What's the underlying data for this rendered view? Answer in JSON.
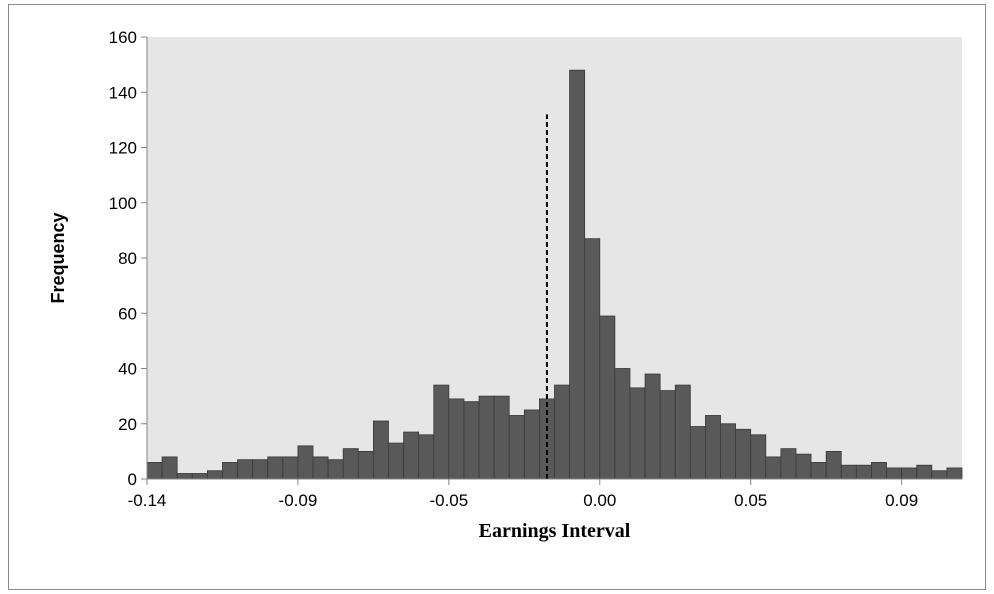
{
  "chart_data": {
    "type": "bar",
    "xlabel": "Earnings Interval",
    "ylabel": "Frequency",
    "ylim": [
      0,
      160
    ],
    "yticks": [
      0,
      20,
      40,
      60,
      80,
      100,
      120,
      140,
      160
    ],
    "xtick_labels": [
      "-0.14",
      "-0.09",
      "-0.05",
      "0.00",
      "0.05",
      "0.09"
    ],
    "xtick_bins": [
      0,
      10,
      20,
      30,
      40,
      50
    ],
    "values": [
      6,
      8,
      2,
      2,
      3,
      6,
      7,
      7,
      8,
      8,
      12,
      8,
      7,
      11,
      10,
      21,
      13,
      17,
      16,
      34,
      29,
      28,
      30,
      30,
      23,
      25,
      29,
      34,
      148,
      87,
      59,
      40,
      33,
      38,
      32,
      34,
      19,
      23,
      20,
      18,
      16,
      8,
      11,
      9,
      6,
      10,
      5,
      5,
      6,
      4,
      4,
      5,
      3,
      4
    ],
    "reference_line": {
      "style": "dashed",
      "bin_position": 26.5,
      "value": 132
    },
    "grid": false,
    "legend": "none",
    "colors": {
      "bar_fill": "#595959",
      "bar_stroke": "#3a3a3a",
      "plot_bg": "#e6e6e6",
      "reference_line": "#000000"
    }
  }
}
